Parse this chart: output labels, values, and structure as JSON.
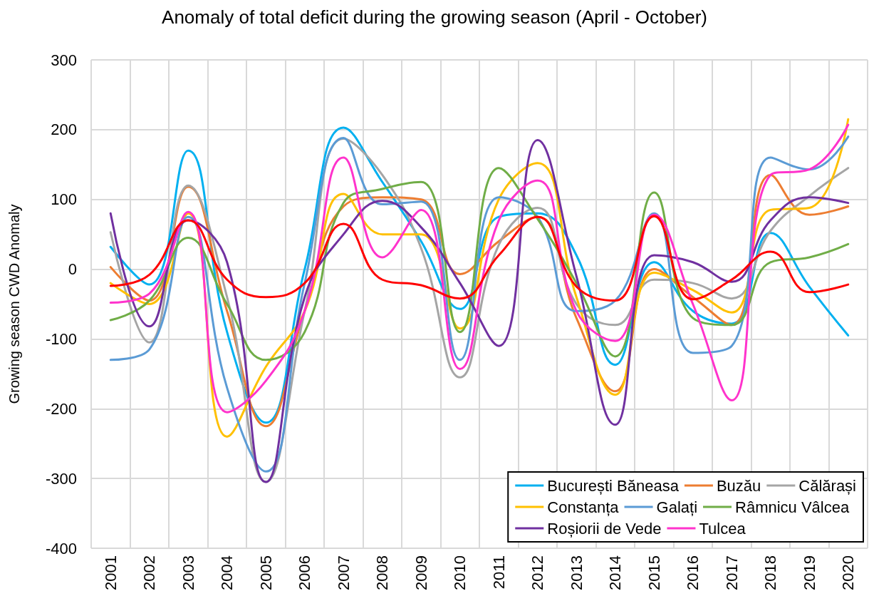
{
  "chart_data": {
    "type": "line",
    "title": "Anomaly of total deficit during the growing season (April - October)",
    "ylabel": "Growing season CWD Anomaly",
    "categories": [
      "2001",
      "2002",
      "2003",
      "2004",
      "2005",
      "2006",
      "2007",
      "2008",
      "2009",
      "2010",
      "2011",
      "2012",
      "2013",
      "2014",
      "2015",
      "2016",
      "2017",
      "2018",
      "2019",
      "2020"
    ],
    "ylim": [
      -400,
      300
    ],
    "yticks": [
      -400,
      -300,
      -200,
      -100,
      0,
      100,
      200,
      300
    ],
    "grid": true,
    "legend": "bottom right",
    "marker": "none",
    "line_style": "solid",
    "series": [
      {
        "name": "București Băneasa",
        "color": "#00b0f0",
        "values": [
          32,
          -22,
          170,
          -90,
          -220,
          0,
          203,
          125,
          40,
          -57,
          75,
          80,
          20,
          -137,
          10,
          -60,
          -78,
          52,
          -25,
          -95
        ]
      },
      {
        "name": "Buzău",
        "color": "#ed7d31",
        "values": [
          3,
          -45,
          118,
          -60,
          -225,
          -60,
          90,
          103,
          100,
          -7,
          40,
          75,
          -70,
          -175,
          0,
          -40,
          -80,
          135,
          78,
          90
        ]
      },
      {
        "name": "Călărași",
        "color": "#a5a5a5",
        "values": [
          53,
          -105,
          120,
          -40,
          -305,
          -60,
          187,
          135,
          30,
          -155,
          35,
          88,
          -50,
          -80,
          -15,
          -20,
          -42,
          55,
          105,
          145
        ]
      },
      {
        "name": "Constanța",
        "color": "#ffc000",
        "values": [
          -20,
          -50,
          80,
          -240,
          -140,
          -60,
          108,
          50,
          50,
          -85,
          100,
          152,
          -40,
          -180,
          -5,
          -30,
          -62,
          85,
          88,
          215
        ]
      },
      {
        "name": "Galați",
        "color": "#5b9bd5",
        "values": [
          -130,
          -115,
          75,
          -170,
          -290,
          -20,
          188,
          93,
          97,
          -130,
          103,
          75,
          -60,
          -45,
          80,
          -120,
          -110,
          160,
          143,
          190
        ]
      },
      {
        "name": "Râmnicu Vâlcea",
        "color": "#70ad47",
        "values": [
          -73,
          -45,
          45,
          -50,
          -130,
          -90,
          95,
          115,
          125,
          -90,
          145,
          72,
          -20,
          -125,
          110,
          -70,
          -80,
          10,
          17,
          36
        ]
      },
      {
        "name": "Roșiorii de Vede",
        "color": "#7030a0",
        "values": [
          80,
          -82,
          70,
          10,
          -305,
          -40,
          50,
          98,
          60,
          -20,
          -110,
          185,
          -10,
          -223,
          20,
          10,
          -18,
          70,
          103,
          95
        ]
      },
      {
        "name": "Tulcea",
        "color": "#ff33cc",
        "values": [
          -48,
          -35,
          82,
          -205,
          -160,
          -60,
          160,
          17,
          85,
          -143,
          70,
          127,
          -60,
          -103,
          78,
          -50,
          -188,
          135,
          143,
          207
        ]
      },
      {
        "color": "#ff0000",
        "values": [
          -24,
          -8,
          70,
          -15,
          -40,
          -20,
          65,
          -15,
          -23,
          -42,
          20,
          75,
          -25,
          -45,
          76,
          -43,
          -15,
          25,
          -33,
          -22
        ]
      }
    ]
  }
}
